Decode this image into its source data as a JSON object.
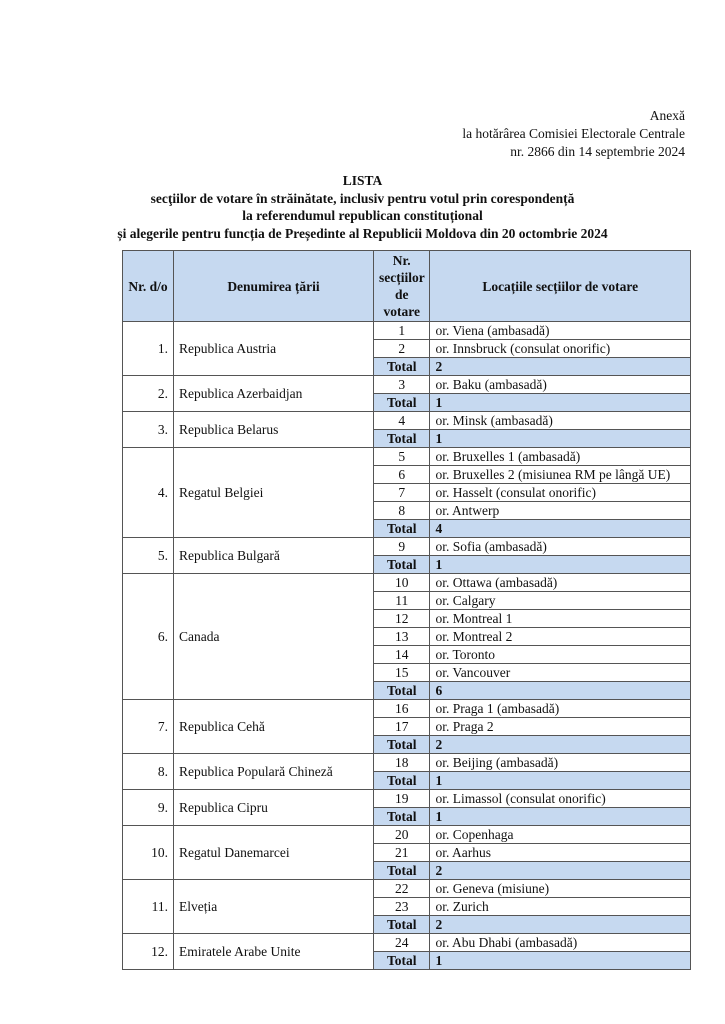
{
  "annex": {
    "line1": "Anexă",
    "line2": "la hotărârea Comisiei Electorale Centrale",
    "line3": "nr. 2866 din 14 septembrie 2024"
  },
  "title": {
    "line1": "LISTA",
    "line2": "secţiilor de votare în străinătate, inclusiv pentru votul prin corespondență",
    "line3": "la referendumul republican constituțional",
    "line4": "și alegerile pentru funcția de Președinte al Republicii Moldova din 20 octombrie 2024"
  },
  "table": {
    "headers": [
      "Nr. d/o",
      "Denumirea țării",
      "Nr. secțiilor de votare",
      "Locațiile secțiilor de votare"
    ],
    "total_label": "Total",
    "countries": [
      {
        "no": "1.",
        "name": "Republica Austria",
        "sections": [
          [
            "1",
            "or. Viena (ambasadă)"
          ],
          [
            "2",
            "or. Innsbruck (consulat onorific)"
          ]
        ],
        "total": "2"
      },
      {
        "no": "2.",
        "name": "Republica Azerbaidjan",
        "sections": [
          [
            "3",
            "or. Baku (ambasadă)"
          ]
        ],
        "total": "1"
      },
      {
        "no": "3.",
        "name": "Republica Belarus",
        "sections": [
          [
            "4",
            "or. Minsk (ambasadă)"
          ]
        ],
        "total": "1"
      },
      {
        "no": "4.",
        "name": "Regatul Belgiei",
        "sections": [
          [
            "5",
            "or. Bruxelles 1 (ambasadă)"
          ],
          [
            "6",
            "or. Bruxelles 2 (misiunea RM pe lângă UE)"
          ],
          [
            "7",
            "or. Hasselt (consulat onorific)"
          ],
          [
            "8",
            "or. Antwerp"
          ]
        ],
        "total": "4"
      },
      {
        "no": "5.",
        "name": "Republica Bulgară",
        "sections": [
          [
            "9",
            "or. Sofia (ambasadă)"
          ]
        ],
        "total": "1"
      },
      {
        "no": "6.",
        "name": "Canada",
        "sections": [
          [
            "10",
            "or. Ottawa (ambasadă)"
          ],
          [
            "11",
            "or. Calgary"
          ],
          [
            "12",
            "or. Montreal 1"
          ],
          [
            "13",
            "or. Montreal 2"
          ],
          [
            "14",
            "or. Toronto"
          ],
          [
            "15",
            "or. Vancouver"
          ]
        ],
        "total": "6"
      },
      {
        "no": "7.",
        "name": "Republica Cehă",
        "sections": [
          [
            "16",
            "or. Praga 1 (ambasadă)"
          ],
          [
            "17",
            "or. Praga 2"
          ]
        ],
        "total": "2"
      },
      {
        "no": "8.",
        "name": "Republica Populară Chineză",
        "sections": [
          [
            "18",
            "or. Beijing (ambasadă)"
          ]
        ],
        "total": "1"
      },
      {
        "no": "9.",
        "name": "Republica Cipru",
        "sections": [
          [
            "19",
            "or. Limassol (consulat onorific)"
          ]
        ],
        "total": "1"
      },
      {
        "no": "10.",
        "name": "Regatul Danemarcei",
        "sections": [
          [
            "20",
            "or. Copenhaga"
          ],
          [
            "21",
            "or. Aarhus"
          ]
        ],
        "total": "2"
      },
      {
        "no": "11.",
        "name": "Elveția",
        "sections": [
          [
            "22",
            "or. Geneva (misiune)"
          ],
          [
            "23",
            "or. Zurich"
          ]
        ],
        "total": "2"
      },
      {
        "no": "12.",
        "name": "Emiratele Arabe Unite",
        "sections": [
          [
            "24",
            "or. Abu Dhabi (ambasadă)"
          ]
        ],
        "total": "1"
      }
    ]
  }
}
